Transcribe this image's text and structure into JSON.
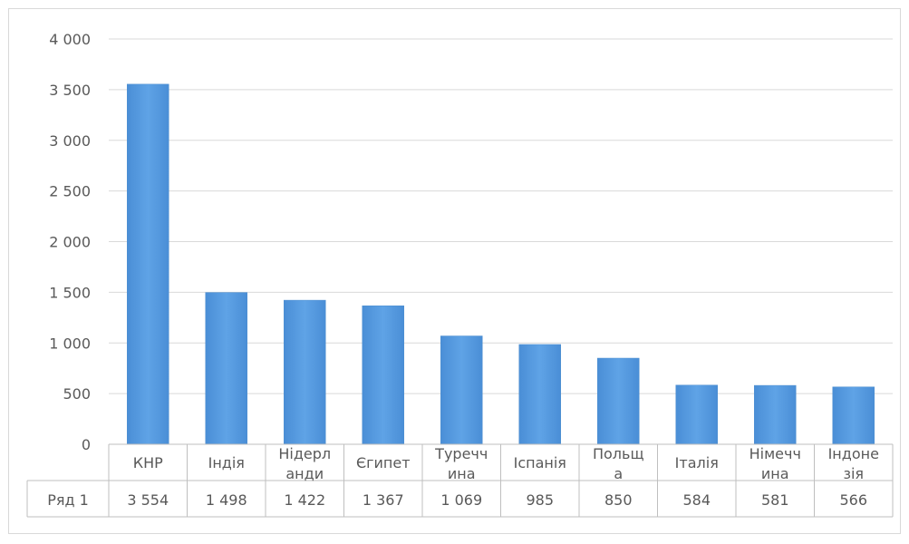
{
  "chart_data": {
    "type": "bar",
    "categories": [
      [
        "КНР"
      ],
      [
        "Індія"
      ],
      [
        "Нідерл",
        "анди"
      ],
      [
        "Єгипет"
      ],
      [
        "Туречч",
        "ина"
      ],
      [
        "Іспанія"
      ],
      [
        "Польщ",
        "а"
      ],
      [
        "Італія"
      ],
      [
        "Німечч",
        "ина"
      ],
      [
        "Індоне",
        "зія"
      ]
    ],
    "series": [
      {
        "name": "Ряд 1",
        "values": [
          3554,
          1498,
          1422,
          1367,
          1069,
          985,
          850,
          584,
          581,
          566
        ],
        "value_labels": [
          "3 554",
          "1 498",
          "1 422",
          "1 367",
          "1 069",
          "985",
          "850",
          "584",
          "581",
          "566"
        ],
        "color": "#5b9bd5"
      }
    ],
    "ylim": [
      0,
      4000
    ],
    "yticks": [
      0,
      500,
      1000,
      1500,
      2000,
      2500,
      3000,
      3500,
      4000
    ],
    "ytick_labels": [
      "0",
      "500",
      "1 000",
      "1 500",
      "2 000",
      "2 500",
      "3 000",
      "3 500",
      "4 000"
    ],
    "grid": true,
    "data_table": true,
    "legend": "none"
  }
}
